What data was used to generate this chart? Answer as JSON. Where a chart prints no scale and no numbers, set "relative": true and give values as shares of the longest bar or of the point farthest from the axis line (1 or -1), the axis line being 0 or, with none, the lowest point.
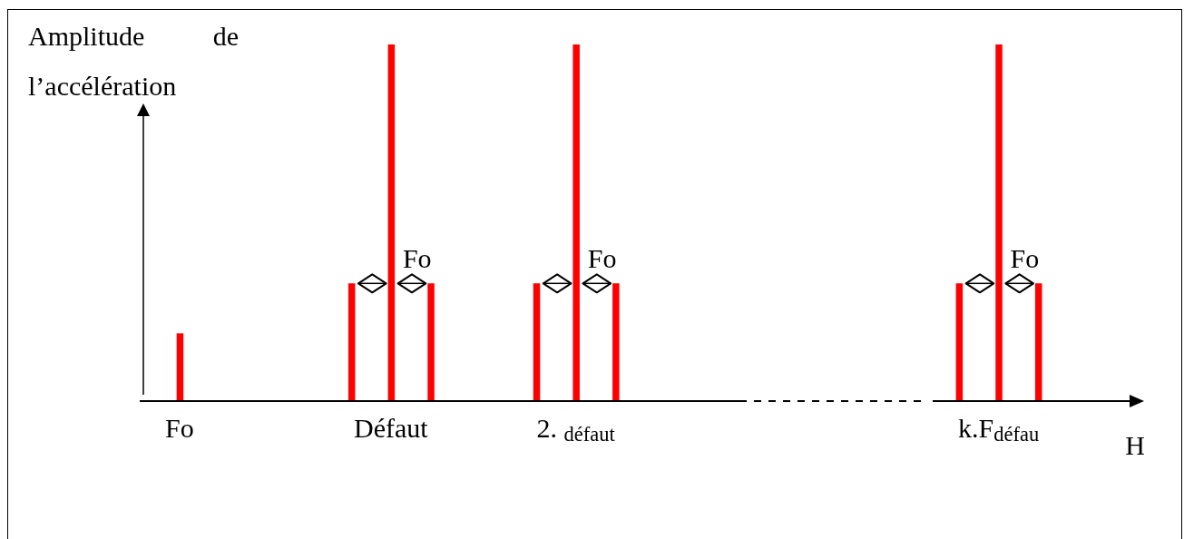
{
  "chart_data": {
    "type": "bar",
    "relative": true,
    "ylabel": "Amplitude de l’accélération",
    "xlabel": "H",
    "categories": [
      null,
      null,
      null,
      "Fo",
      null,
      null,
      null,
      null,
      null,
      null,
      null,
      null,
      null,
      null,
      null,
      null,
      null,
      null,
      null,
      "Défaut",
      null,
      null,
      null,
      null,
      null,
      null,
      null,
      null,
      null,
      null,
      null,
      null,
      null,
      "2. $_{défaut}$",
      null,
      null,
      null,
      null,
      null,
      null,
      null,
      null,
      null,
      null,
      null,
      null,
      null,
      null,
      null,
      null,
      null,
      null,
      null,
      null,
      null,
      null,
      null,
      null,
      null,
      null,
      null,
      null,
      null,
      null,
      null,
      "k.F$_{défau}$",
      null,
      null,
      null,
      null,
      null,
      null,
      null,
      null,
      null,
      null,
      null
    ],
    "values": [
      null,
      null,
      null,
      0.19,
      null,
      null,
      null,
      null,
      null,
      null,
      null,
      null,
      null,
      null,
      null,
      null,
      0.33,
      null,
      null,
      1,
      null,
      null,
      0.33,
      null,
      null,
      null,
      null,
      null,
      null,
      null,
      0.33,
      null,
      null,
      1,
      null,
      null,
      0.33,
      null,
      null,
      null,
      null,
      null,
      null,
      null,
      null,
      null,
      null,
      null,
      null,
      null,
      null,
      null,
      null,
      null,
      null,
      null,
      null,
      null,
      null,
      null,
      null,
      null,
      0.33,
      null,
      null,
      1,
      null,
      null,
      0.33,
      null,
      null,
      null,
      null,
      null,
      null,
      null,
      null
    ],
    "color": "#ff0000",
    "annotations": [
      {
        "text": "Fo",
        "x": "Défaut",
        "y": 0.33
      },
      {
        "text": "Fo",
        "x": "2. $_{défaut}$",
        "y": 0.33
      },
      {
        "text": "Fo",
        "x": "k.F$_{défau}$",
        "y": 0.33
      }
    ]
  }
}
